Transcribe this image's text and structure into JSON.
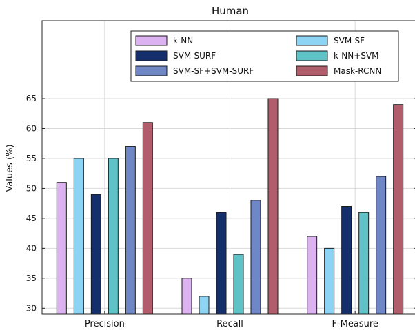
{
  "chart_data": {
    "type": "bar",
    "title": "Human",
    "xlabel": "",
    "ylabel": "Values (%)",
    "categories": [
      "Precision",
      "Recall",
      "F-Measure"
    ],
    "series": [
      {
        "name": "k-NN",
        "values": [
          51,
          35,
          42
        ],
        "color": "#dcb3f0"
      },
      {
        "name": "SVM-SF",
        "values": [
          55,
          32,
          40
        ],
        "color": "#8dd3f3"
      },
      {
        "name": "SVM-SURF",
        "values": [
          49,
          46,
          47
        ],
        "color": "#152f6c"
      },
      {
        "name": "k-NN+SVM",
        "values": [
          55,
          39,
          46
        ],
        "color": "#5ec2c7"
      },
      {
        "name": "SVM-SF+SVM-SURF",
        "values": [
          57,
          48,
          52
        ],
        "color": "#6f86c7"
      },
      {
        "name": "Mask-RCNN",
        "values": [
          61,
          65,
          64
        ],
        "color": "#b15d6b"
      }
    ],
    "ylim": [
      29,
      78
    ],
    "yticks": [
      30,
      35,
      40,
      45,
      50,
      55,
      60,
      65
    ],
    "grid": true,
    "legend_position": "top-right"
  }
}
